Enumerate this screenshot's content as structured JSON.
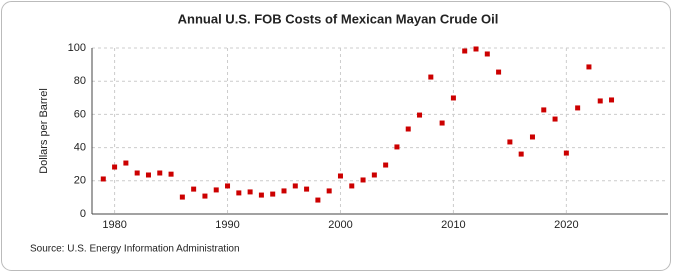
{
  "chart_data": {
    "type": "scatter",
    "title": "Annual U.S. FOB Costs of Mexican Mayan Crude Oil",
    "y_label": "Dollars per Barrel",
    "source": "Source: U.S. Energy Information Administration",
    "color": "#cc0000",
    "x": [
      1979,
      1980,
      1981,
      1982,
      1983,
      1984,
      1985,
      1986,
      1987,
      1988,
      1989,
      1990,
      1991,
      1992,
      1993,
      1994,
      1995,
      1996,
      1997,
      1998,
      1999,
      2000,
      2001,
      2002,
      2003,
      2004,
      2005,
      2006,
      2007,
      2008,
      2009,
      2010,
      2011,
      2012,
      2013,
      2014,
      2015,
      2016,
      2017,
      2018,
      2019,
      2020,
      2021,
      2022,
      2023,
      2024
    ],
    "values": [
      21.1,
      28.3,
      30.7,
      24.7,
      23.5,
      24.7,
      24.0,
      10.2,
      15.0,
      10.8,
      14.5,
      16.9,
      12.7,
      13.3,
      11.4,
      12.0,
      13.9,
      16.9,
      15.0,
      8.4,
      13.9,
      22.9,
      16.9,
      20.5,
      23.5,
      29.5,
      40.4,
      51.2,
      59.6,
      82.5,
      54.8,
      69.9,
      98.2,
      99.4,
      96.4,
      85.5,
      43.4,
      36.1,
      46.4,
      62.7,
      57.2,
      36.7,
      63.9,
      88.6,
      68.1,
      68.7
    ],
    "xlim": [
      1978,
      2029
    ],
    "xticks": [
      1980,
      1990,
      2000,
      2010,
      2020
    ],
    "ylim": [
      0,
      100
    ],
    "yticks": [
      0,
      20,
      40,
      60,
      80,
      100
    ],
    "grid": true
  }
}
